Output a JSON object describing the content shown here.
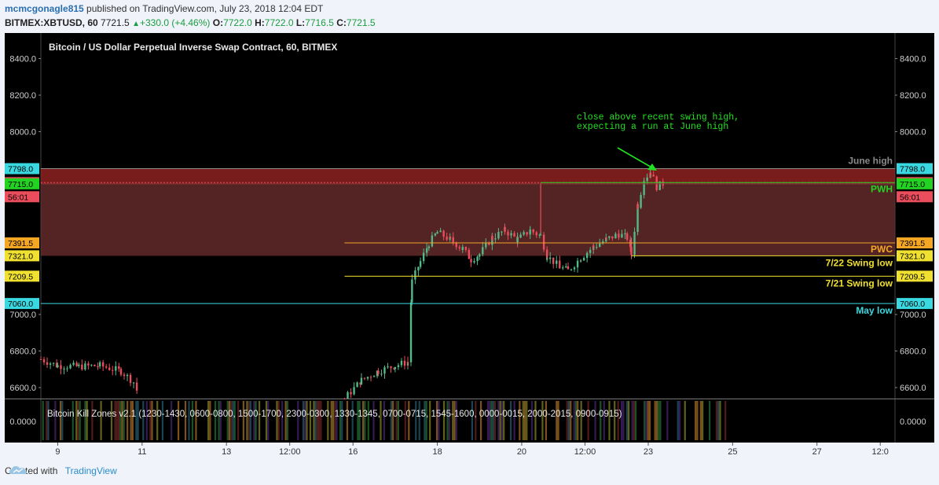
{
  "header": {
    "user": "mcmcgonagle815",
    "published": " published on TradingView.com, July 23, 2018 12:04 EDT",
    "symbol": "BITMEX:XBTUSD, 60",
    "last": "7721.5",
    "up_glyph": "▲",
    "change": "+330.0 (+4.46%)",
    "o_label": "O:",
    "o": "7722.0",
    "h_label": "H:",
    "h": "7722.0",
    "l_label": "L:",
    "l": "7716.5",
    "c_label": "C:",
    "c": "7721.5"
  },
  "footer": {
    "created": "Created with",
    "brand": "TradingView",
    "logo_icon": "tradingview-cloud-icon"
  },
  "chart_data": {
    "type": "candlestick",
    "title": "Bitcoin / US Dollar Perpetual Inverse Swap Contract, 60, BITMEX",
    "ylim": [
      6540,
      8540
    ],
    "y_ticks": [
      6600,
      6800,
      7000,
      8000,
      8200,
      8400
    ],
    "y_tick_labels": [
      "6600.0",
      "6800.0",
      "7000.0",
      "8000.0",
      "8200.0",
      "8400.0"
    ],
    "x_ticks": [
      {
        "t": 1,
        "label": "9"
      },
      {
        "t": 3,
        "label": "11"
      },
      {
        "t": 5,
        "label": "13"
      },
      {
        "t": 6.5,
        "label": "12:00"
      },
      {
        "t": 8,
        "label": "16"
      },
      {
        "t": 10,
        "label": "18"
      },
      {
        "t": 12,
        "label": "20"
      },
      {
        "t": 13.5,
        "label": "12:00"
      },
      {
        "t": 15,
        "label": "23"
      },
      {
        "t": 17,
        "label": "25"
      },
      {
        "t": 19,
        "label": "27"
      },
      {
        "t": 20.5,
        "label": "12:0"
      }
    ],
    "xlim": [
      0.6,
      20.85
    ],
    "colors": {
      "up": "#53b987",
      "down": "#eb4d5c",
      "zone": "#8b2a2a",
      "green_line": "#22d322",
      "yellow": "#f0e030",
      "orange": "#f5a623",
      "cyan": "#3ad8e0"
    },
    "zones": [
      {
        "from": 7715,
        "to": 7798,
        "color": "#9b2424"
      },
      {
        "from": 7321,
        "to": 7715,
        "color": "#6b2e2e"
      }
    ],
    "levels": [
      {
        "value": 7798.0,
        "label": "7798.0",
        "tag_color": "#3ad8e0",
        "line_color": "#8a8a8a",
        "x_start": 0.6,
        "text": "June high",
        "text_color": "#8a8a8a"
      },
      {
        "value": 7721.5,
        "label": "7721.5",
        "tag_color": "#eb4d5c",
        "line_color": "#eb4d5c",
        "dashed": true,
        "x_start": 0.6,
        "text": "",
        "text_color": ""
      },
      {
        "value": 7721.5,
        "label": "",
        "tag_color": "",
        "line_color": "#22d322",
        "x_start": 12.45,
        "text": "PWH",
        "text_color": "#22d322"
      },
      {
        "value": 7715.0,
        "label": "7715.0",
        "tag_color": "#22d322",
        "line_color": "#8a3a3a",
        "x_start": 0.6,
        "text": "",
        "text_color": ""
      },
      {
        "value": 7391.5,
        "label": "7391.5",
        "tag_color": "#f5a623",
        "line_color": "#f5a623",
        "x_start": 7.8,
        "text": "PWC",
        "text_color": "#f5a623"
      },
      {
        "value": 7321.0,
        "label": "7321.0",
        "tag_color": "#f0e030",
        "line_color": "#f0e030",
        "x_start": 14.6,
        "text": "7/22 Swing low",
        "text_color": "#f0e030"
      },
      {
        "value": 7209.5,
        "label": "7209.5",
        "tag_color": "#f0e030",
        "line_color": "#f0e030",
        "x_start": 7.8,
        "text": "7/21 Swing low",
        "text_color": "#f0e030"
      },
      {
        "value": 7060.0,
        "label": "7060.0",
        "tag_color": "#3ad8e0",
        "line_color": "#3ad8e0",
        "x_start": 0.6,
        "text": "May low",
        "text_color": "#3ad8e0"
      }
    ],
    "countdown": "56:01",
    "annotation": [
      "close above recent swing high,",
      "expecting a run at June high"
    ],
    "vertical_marks": [
      {
        "t": 12.45,
        "from": 7440,
        "to": 7721.5,
        "color": "#eb4d5c"
      },
      {
        "t": 14.6,
        "from": 7321,
        "to": 7420,
        "color": "#8a8a8a"
      }
    ],
    "path": [
      [
        0.6,
        6755
      ],
      [
        1.0,
        6720
      ],
      [
        1.5,
        6715
      ],
      [
        2.0,
        6720
      ],
      [
        2.5,
        6690
      ],
      [
        2.8,
        6630
      ],
      [
        2.95,
        6540
      ],
      [
        7.8,
        6540
      ],
      [
        8.2,
        6640
      ],
      [
        8.6,
        6690
      ],
      [
        9.0,
        6720
      ],
      [
        9.3,
        6740
      ],
      [
        9.4,
        7180
      ],
      [
        9.6,
        7290
      ],
      [
        9.8,
        7390
      ],
      [
        10.0,
        7450
      ],
      [
        10.3,
        7410
      ],
      [
        10.6,
        7360
      ],
      [
        10.8,
        7300
      ],
      [
        11.0,
        7330
      ],
      [
        11.3,
        7420
      ],
      [
        11.6,
        7460
      ],
      [
        11.9,
        7410
      ],
      [
        12.2,
        7460
      ],
      [
        12.45,
        7430
      ],
      [
        12.6,
        7320
      ],
      [
        12.9,
        7260
      ],
      [
        13.1,
        7240
      ],
      [
        13.4,
        7310
      ],
      [
        13.7,
        7370
      ],
      [
        14.0,
        7410
      ],
      [
        14.3,
        7440
      ],
      [
        14.5,
        7420
      ],
      [
        14.6,
        7330
      ],
      [
        14.75,
        7600
      ],
      [
        14.9,
        7740
      ],
      [
        15.05,
        7780
      ],
      [
        15.2,
        7700
      ],
      [
        15.4,
        7721.5
      ]
    ],
    "indicator": {
      "label": "Bitcoin Kill Zones v2.1 (1230-1430, 0600-0800, 1500-1700, 2300-0300, 1330-1345, 0700-0715, 1545-1600, 0000-0015, 2000-2015, 0900-0915)",
      "value_label": "0.0000",
      "x_end": 17.0
    }
  }
}
